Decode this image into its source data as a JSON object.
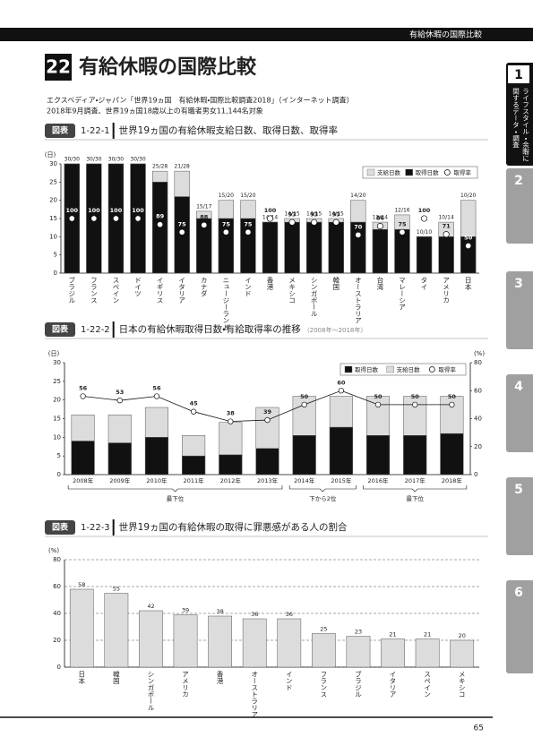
{
  "header": {
    "tag": "有給休暇の国際比較"
  },
  "section": {
    "number": "22",
    "title": "有給休暇の国際比較"
  },
  "source": [
    "エクスペディア・ジャパン「世界19ヵ国　有給休暇・国際比較調査2018」（インターネット調査）",
    "2018年9月調査、世界19ヵ国18歳以上の有職者男女11,144名対象"
  ],
  "sidebar": {
    "tabs": [
      {
        "number": "1",
        "label_lines": [
          "ライフスタイル・余暇に",
          "関するデータ・調査"
        ]
      },
      {
        "number": "2"
      },
      {
        "number": "3"
      },
      {
        "number": "4"
      },
      {
        "number": "5"
      },
      {
        "number": "6"
      }
    ]
  },
  "chart_data": [
    {
      "type": "bar",
      "label": "図表",
      "number": "1-22-1",
      "title": "世界19ヵ国の有給休暇支給日数、取得日数、取得率",
      "y_unit": "(日)",
      "categories": [
        "ブラジル",
        "フランス",
        "スペイン",
        "ドイツ",
        "イギリス",
        "イタリア",
        "カナダ",
        "ニュージーランド",
        "インド",
        "香港",
        "メキシコ",
        "シンガポール",
        "韓国",
        "オーストラリア",
        "台湾",
        "マレーシア",
        "タイ",
        "アメリカ",
        "日本"
      ],
      "series": [
        {
          "name": "支給日数",
          "color": "#dcdcdc",
          "values": [
            30,
            30,
            30,
            30,
            28,
            28,
            17,
            20,
            20,
            14,
            15,
            15,
            15,
            20,
            14,
            16,
            10,
            14,
            20
          ]
        },
        {
          "name": "取得日数",
          "color": "#111111",
          "values": [
            30,
            30,
            30,
            30,
            25,
            21,
            15,
            15,
            15,
            14,
            14,
            14,
            14,
            14,
            12,
            12,
            10,
            10,
            10
          ]
        },
        {
          "name": "取得率",
          "color": "#ffffff",
          "axis": "y2",
          "line": false,
          "values": [
            100,
            100,
            100,
            100,
            89,
            75,
            88,
            75,
            75,
            100,
            93,
            93,
            93,
            70,
            86,
            75,
            100,
            71,
            50
          ]
        }
      ],
      "top_labels": [
        "30/30",
        "30/30",
        "30/30",
        "30/30",
        "25/28",
        "21/28",
        "15/17",
        "15/20",
        "15/20",
        "14/14",
        "14/15",
        "14/15",
        "14/15",
        "14/20",
        "12/14",
        "12/16",
        "10/10",
        "10/14",
        "10/20"
      ],
      "ylim": [
        0,
        30
      ],
      "yticks": [
        0,
        5,
        10,
        15,
        20,
        25,
        30
      ],
      "y2lim": [
        0,
        200
      ],
      "grid": false
    },
    {
      "type": "bar",
      "label": "図表",
      "number": "1-22-2",
      "title": "日本の有給休暇取得日数・有給取得率の推移",
      "subtitle": "（2008年〜2018年）",
      "y_unit": "(日)",
      "y2_unit": "(%)",
      "categories": [
        "2008年",
        "2009年",
        "2010年",
        "2011年",
        "2012年",
        "2013年",
        "2014年",
        "2015年",
        "2016年",
        "2017年",
        "2018年"
      ],
      "series": [
        {
          "name": "取得日数",
          "color": "#111111",
          "values": [
            9,
            8.5,
            10,
            5,
            5.3,
            7,
            10.5,
            12.7,
            10.5,
            10.5,
            11
          ]
        },
        {
          "name": "支給日数",
          "color": "#dcdcdc",
          "values": [
            16,
            16,
            18,
            10.5,
            14,
            18,
            21,
            21,
            21,
            21,
            21
          ]
        },
        {
          "name": "取得率",
          "color": "#ffffff",
          "axis": "y2",
          "line": true,
          "values": [
            56,
            53,
            56,
            45,
            38,
            39,
            50,
            60,
            50,
            50,
            50
          ]
        }
      ],
      "brackets": [
        {
          "label": "最下位",
          "span": [
            "2008年",
            "2013年"
          ]
        },
        {
          "label": "下から2位",
          "span": [
            "2014年",
            "2015年"
          ]
        },
        {
          "label": "最下位",
          "span": [
            "2016年",
            "2018年"
          ]
        }
      ],
      "ylim": [
        0,
        30
      ],
      "yticks": [
        0,
        5,
        10,
        15,
        20,
        25,
        30
      ],
      "y2lim": [
        0,
        80
      ],
      "y2ticks": [
        0,
        20,
        40,
        60,
        80
      ],
      "grid": false
    },
    {
      "type": "bar",
      "label": "図表",
      "number": "1-22-3",
      "title": "世界19ヵ国の有給休暇の取得に罪悪感がある人の割合",
      "y_unit": "(%)",
      "categories": [
        "日本",
        "韓国",
        "シンガポール",
        "アメリカ",
        "香港",
        "オーストラリア",
        "インド",
        "フランス",
        "ブラジル",
        "イタリア",
        "スペイン",
        "メキシコ"
      ],
      "values": [
        58,
        55,
        42,
        39,
        38,
        36,
        36,
        25,
        23,
        21,
        21,
        20
      ],
      "color": "#dcdcdc",
      "ylim": [
        0,
        80
      ],
      "yticks": [
        0,
        20,
        40,
        60,
        80
      ],
      "grid": true
    }
  ],
  "page_number": "65"
}
